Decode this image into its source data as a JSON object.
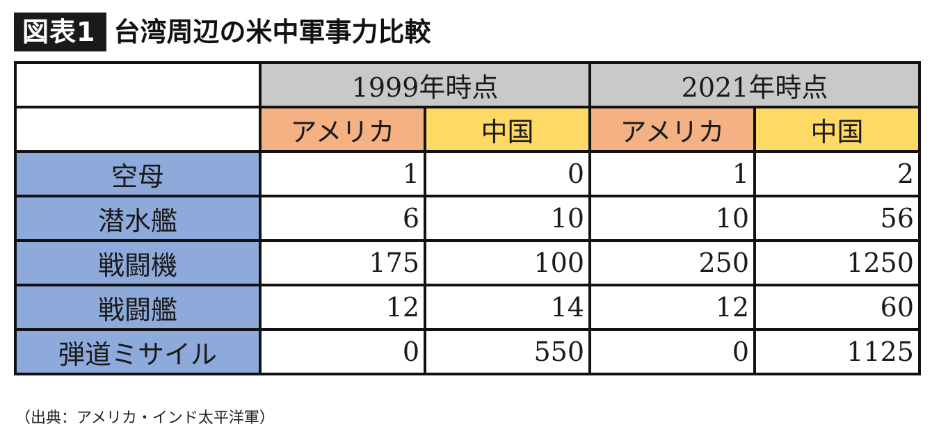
{
  "header": {
    "tag": "図表1",
    "title": "台湾周辺の米中軍事力比較"
  },
  "table": {
    "periods": [
      "1999年時点",
      "2021年時点"
    ],
    "countries": [
      "アメリカ",
      "中国",
      "アメリカ",
      "中国"
    ],
    "rows": [
      {
        "label": "空母",
        "values": [
          "1",
          "0",
          "1",
          "2"
        ]
      },
      {
        "label": "潜水艦",
        "values": [
          "6",
          "10",
          "10",
          "56"
        ]
      },
      {
        "label": "戦闘機",
        "values": [
          "175",
          "100",
          "250",
          "1250"
        ]
      },
      {
        "label": "戦闘艦",
        "values": [
          "12",
          "14",
          "12",
          "60"
        ]
      },
      {
        "label": "弾道ミサイル",
        "values": [
          "0",
          "550",
          "0",
          "1125"
        ]
      }
    ]
  },
  "source": "（出典：アメリカ・インド太平洋軍）",
  "colors": {
    "period_header": "#c9c9c9",
    "usa_header": "#f4b183",
    "china_header": "#ffd966",
    "row_label": "#8eaadb"
  }
}
